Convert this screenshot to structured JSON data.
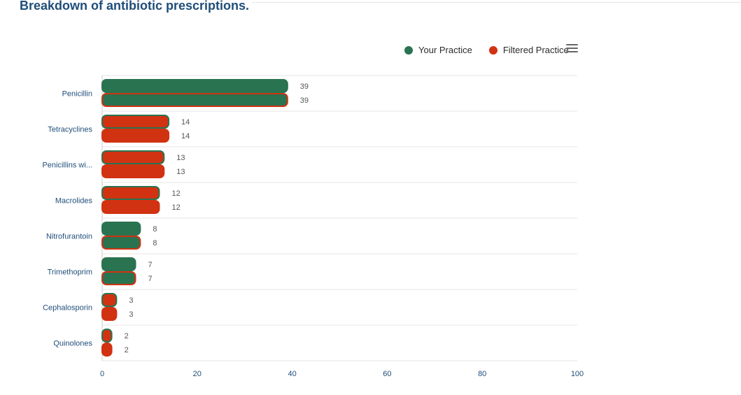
{
  "page": {
    "title": "Breakdown of antibiotic prescriptions."
  },
  "legend": {
    "items": [
      {
        "label": "Your Practice",
        "color": "#2a7350"
      },
      {
        "label": "Filtered Practice",
        "color": "#d13212"
      }
    ]
  },
  "menu": {
    "icon": "hamburger-menu-icon"
  },
  "chart_data": {
    "type": "bar",
    "orientation": "horizontal",
    "categories": [
      "Penicillin",
      "Tetracyclines",
      "Penicillins wi...",
      "Macrolides",
      "Nitrofurantoin",
      "Trimethoprim",
      "Cephalosporin",
      "Quinolones"
    ],
    "series": [
      {
        "name": "Your Practice",
        "values": [
          39,
          14,
          13,
          12,
          8,
          7,
          3,
          2
        ]
      },
      {
        "name": "Filtered Practice",
        "values": [
          39,
          14,
          13,
          12,
          8,
          7,
          3,
          2
        ]
      }
    ],
    "xlim": [
      0,
      100
    ],
    "xticks": [
      0,
      20,
      40,
      60,
      80,
      100
    ],
    "grid": true,
    "data_labels": true,
    "legend_position": "top-right",
    "title": "",
    "xlabel": "",
    "ylabel": ""
  }
}
